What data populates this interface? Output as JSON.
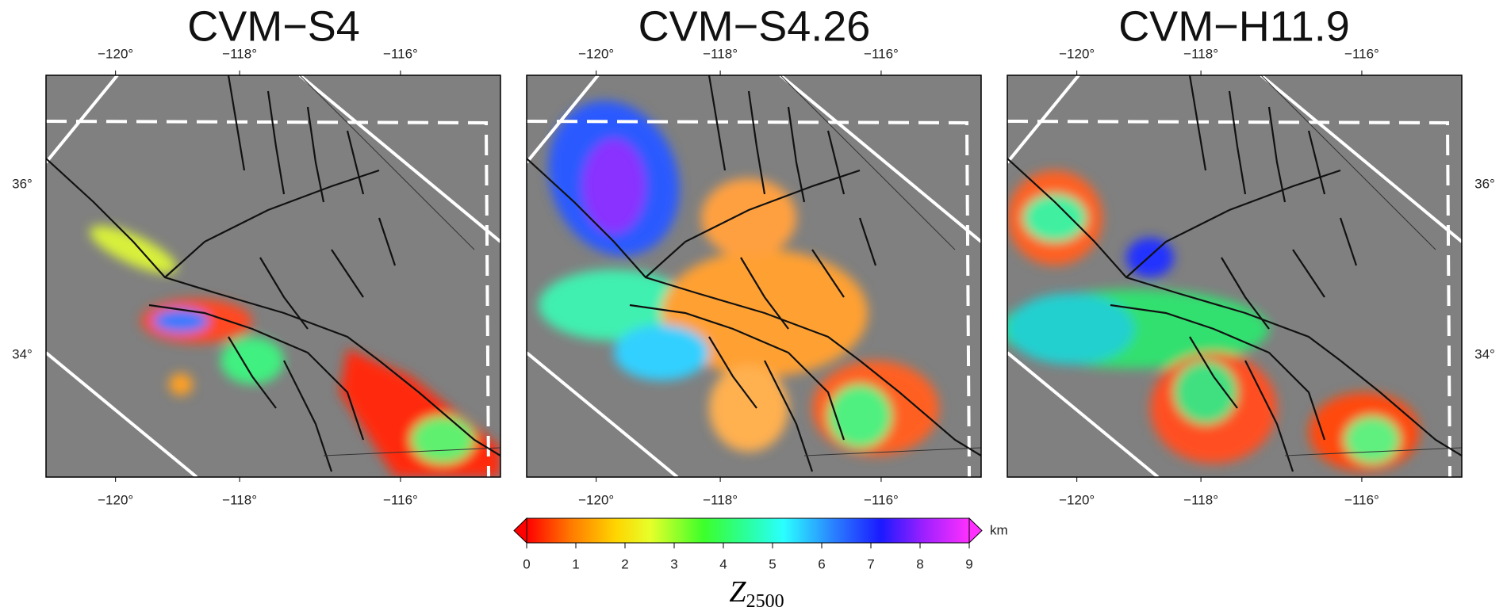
{
  "panels": [
    {
      "title": "CVM−S4"
    },
    {
      "title": "CVM−S4.26"
    },
    {
      "title": "CVM−H11.9"
    }
  ],
  "lon_ticks": [
    "−120°",
    "−118°",
    "−116°"
  ],
  "lat_ticks": [
    "36°",
    "34°"
  ],
  "colorbar": {
    "ticks": [
      "0",
      "1",
      "2",
      "3",
      "4",
      "5",
      "6",
      "7",
      "8",
      "9"
    ],
    "unit": "km",
    "label": {
      "main": "Z",
      "sub": "2500"
    }
  }
}
